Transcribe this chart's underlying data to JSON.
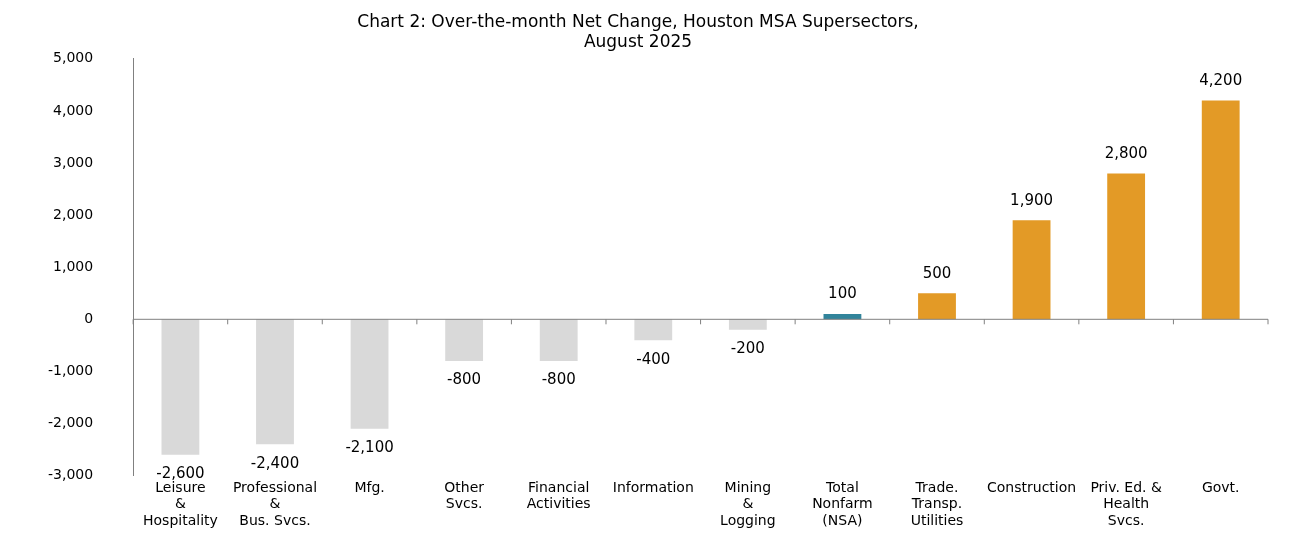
{
  "chart_data": {
    "type": "bar",
    "title": "Chart 2: Over-the-month Net Change, Houston MSA Supersectors,\nAugust 2025",
    "categories": [
      "Leisure\n&\nHospitality",
      "Professional\n&\nBus. Svcs.",
      "Mfg.",
      "Other\nSvcs.",
      "Financial\nActivities",
      "Information",
      "Mining\n&\nLogging",
      "Total\nNonfarm\n(NSA)",
      "Trade.\nTransp.\nUtilities",
      "Construction",
      "Priv. Ed. &\nHealth\nSvcs.",
      "Govt."
    ],
    "values": [
      -2600,
      -2400,
      -2100,
      -800,
      -800,
      -400,
      -200,
      100,
      500,
      1900,
      2800,
      4200
    ],
    "colors": [
      "#d9d9d9",
      "#d9d9d9",
      "#d9d9d9",
      "#d9d9d9",
      "#d9d9d9",
      "#d9d9d9",
      "#d9d9d9",
      "#31849b",
      "#e39a26",
      "#e39a26",
      "#e39a26",
      "#e39a26"
    ],
    "ylim": [
      -3000,
      5000
    ],
    "yticks": [
      {
        "value": -3000,
        "label": "-3,000"
      },
      {
        "value": -2000,
        "label": "-2,000"
      },
      {
        "value": -1000,
        "label": "-1,000"
      },
      0,
      {
        "value": 1000,
        "label": "1,000"
      },
      {
        "value": 2000,
        "label": "2,000"
      },
      {
        "value": 3000,
        "label": "3,000"
      },
      {
        "value": 4000,
        "label": "4,000"
      },
      {
        "value": 5000,
        "label": "5,000"
      }
    ],
    "value_labels": [
      "-2,600",
      "-2,400",
      "-2,100",
      "-800",
      "-800",
      "-400",
      "-200",
      "100",
      "500",
      "1,900",
      "2,800",
      "4,200"
    ]
  }
}
